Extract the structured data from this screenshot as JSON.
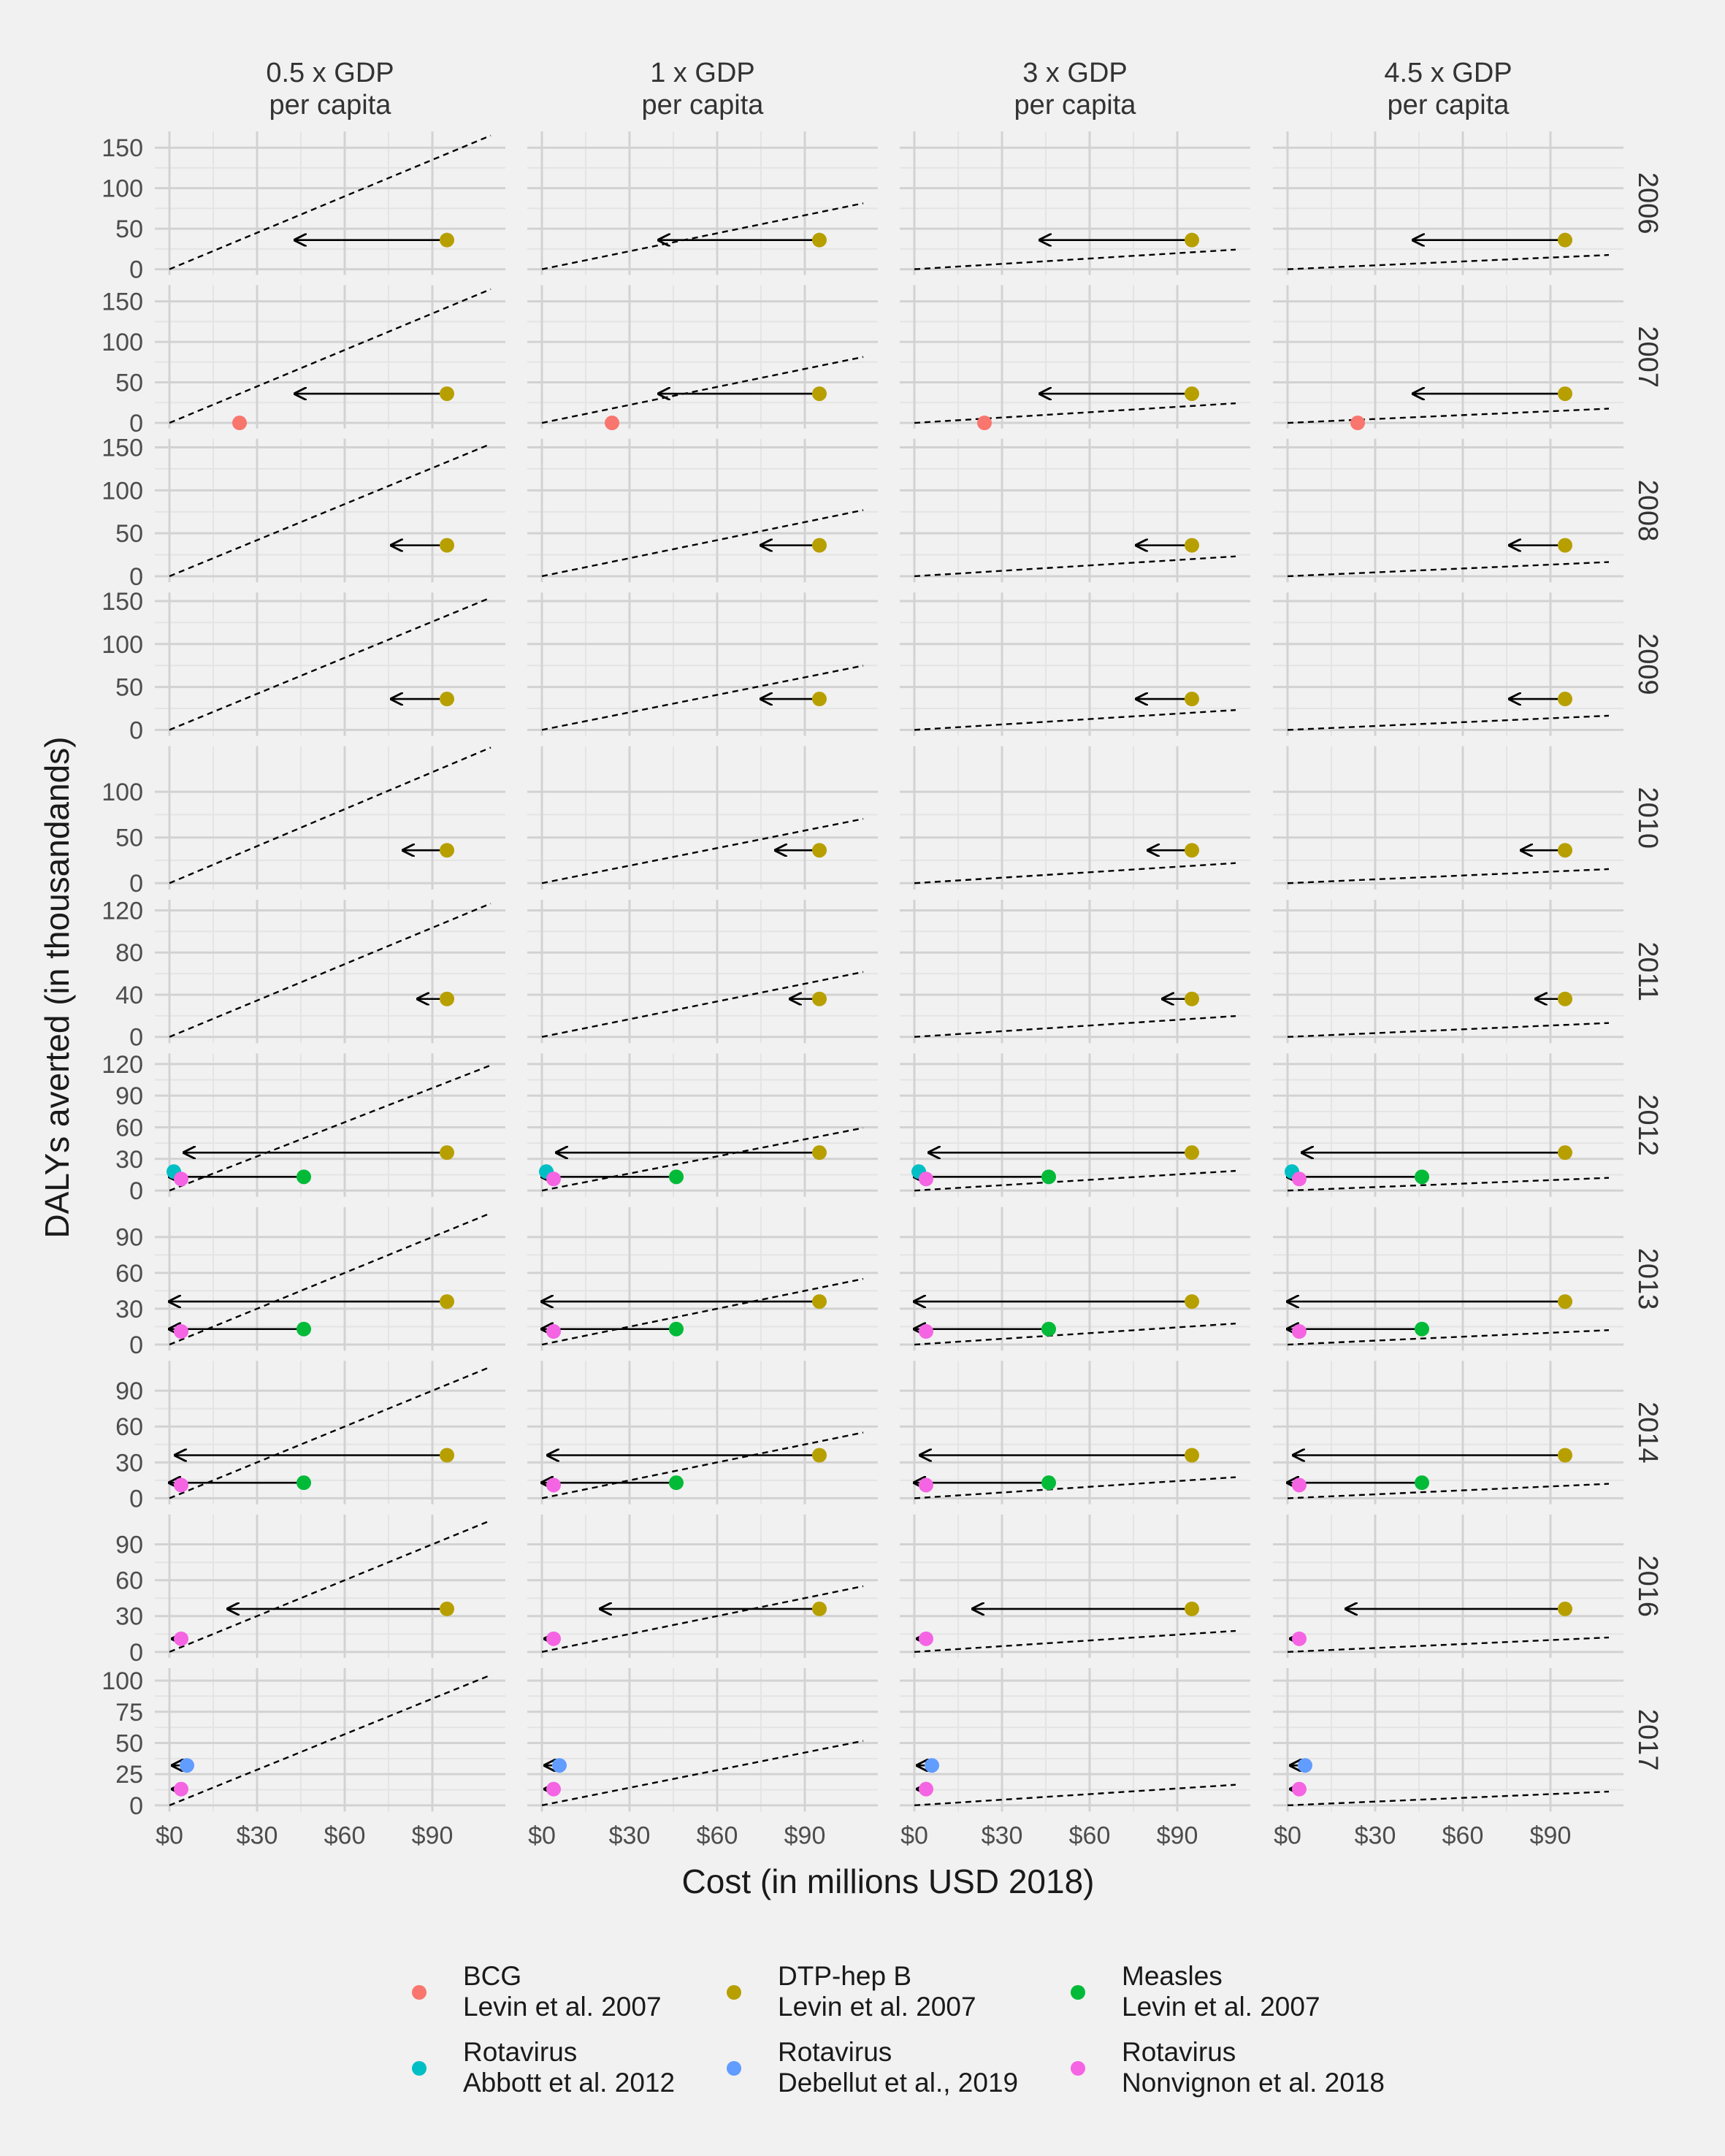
{
  "chart_data": {
    "type": "scatter",
    "xlabel": "Cost (in millions USD 2018)",
    "ylabel": "DALYs averted (in thousandands)",
    "x_ticks": [
      0,
      30,
      60,
      90
    ],
    "x_tick_labels": [
      "$0",
      "$30",
      "$60",
      "$90"
    ],
    "xlim": [
      -5,
      115
    ],
    "columns": [
      {
        "label1": "0.5 x GDP",
        "label2": "per capita",
        "slope": 1.45
      },
      {
        "label1": "1 x GDP",
        "label2": "per capita",
        "slope": 0.72
      },
      {
        "label1": "3 x GDP",
        "label2": "per capita",
        "slope": 0.22
      },
      {
        "label1": "4.5 x GDP",
        "label2": "per capita",
        "slope": 0.15
      }
    ],
    "rows": [
      {
        "year": "2006",
        "ylim": [
          -7,
          170
        ],
        "yticks": [
          0,
          50,
          100,
          150
        ],
        "slopes": [
          1.5,
          0.74,
          0.22,
          0.16
        ],
        "points": [
          {
            "vaccine": "DTP-hep B",
            "cost": 95,
            "dalys": 36,
            "arrow_to": [
              43,
              40,
              43,
              43
            ]
          }
        ]
      },
      {
        "year": "2007",
        "ylim": [
          -7,
          170
        ],
        "yticks": [
          0,
          50,
          100,
          150
        ],
        "slopes": [
          1.5,
          0.74,
          0.22,
          0.16
        ],
        "points": [
          {
            "vaccine": "DTP-hep B",
            "cost": 95,
            "dalys": 36,
            "arrow_to": [
              43,
              40,
              43,
              43
            ]
          },
          {
            "vaccine": "BCG",
            "cost": 24,
            "dalys": 0
          }
        ]
      },
      {
        "year": "2008",
        "ylim": [
          -7,
          160
        ],
        "yticks": [
          0,
          50,
          100,
          150
        ],
        "slopes": [
          1.4,
          0.7,
          0.21,
          0.15
        ],
        "points": [
          {
            "vaccine": "DTP-hep B",
            "cost": 95,
            "dalys": 36,
            "arrow_to": [
              76,
              75,
              76,
              76
            ]
          }
        ]
      },
      {
        "year": "2009",
        "ylim": [
          -7,
          160
        ],
        "yticks": [
          0,
          50,
          100,
          150
        ],
        "slopes": [
          1.4,
          0.68,
          0.21,
          0.15
        ],
        "points": [
          {
            "vaccine": "DTP-hep B",
            "cost": 95,
            "dalys": 36,
            "arrow_to": [
              76,
              75,
              76,
              76
            ]
          }
        ]
      },
      {
        "year": "2010",
        "ylim": [
          -7,
          150
        ],
        "yticks": [
          0,
          50,
          100
        ],
        "slopes": [
          1.35,
          0.64,
          0.2,
          0.14
        ],
        "points": [
          {
            "vaccine": "DTP-hep B",
            "cost": 95,
            "dalys": 36,
            "arrow_to": [
              80,
              80,
              80,
              80
            ]
          }
        ]
      },
      {
        "year": "2011",
        "ylim": [
          -6,
          130
        ],
        "yticks": [
          0,
          40,
          80,
          120
        ],
        "slopes": [
          1.15,
          0.56,
          0.18,
          0.12
        ],
        "points": [
          {
            "vaccine": "DTP-hep B",
            "cost": 95,
            "dalys": 36,
            "arrow_to": [
              85,
              85,
              85,
              85
            ]
          }
        ]
      },
      {
        "year": "2012",
        "ylim": [
          -6,
          130
        ],
        "yticks": [
          0,
          30,
          60,
          90,
          120
        ],
        "slopes": [
          1.08,
          0.54,
          0.17,
          0.11
        ],
        "points": [
          {
            "vaccine": "DTP-hep B",
            "cost": 95,
            "dalys": 36,
            "arrow_to": [
              5,
              5,
              5,
              5
            ]
          },
          {
            "vaccine": "Measles",
            "cost": 46,
            "dalys": 13,
            "arrow_to": [
              0,
              0,
              0,
              0
            ]
          },
          {
            "vaccine": "Rotavirus Abbott",
            "cost": 1.5,
            "dalys": 18
          },
          {
            "vaccine": "Rotavirus Nonvignon",
            "cost": 4,
            "dalys": 11
          }
        ]
      },
      {
        "year": "2013",
        "ylim": [
          -5,
          115
        ],
        "yticks": [
          0,
          30,
          60,
          90
        ],
        "slopes": [
          1.0,
          0.5,
          0.16,
          0.11
        ],
        "points": [
          {
            "vaccine": "DTP-hep B",
            "cost": 95,
            "dalys": 36,
            "arrow_to": [
              0,
              0,
              0,
              0
            ]
          },
          {
            "vaccine": "Measles",
            "cost": 46,
            "dalys": 13,
            "arrow_to": [
              0,
              0,
              0,
              0
            ]
          },
          {
            "vaccine": "Rotavirus Nonvignon",
            "cost": 4,
            "dalys": 11
          }
        ]
      },
      {
        "year": "2014",
        "ylim": [
          -5,
          115
        ],
        "yticks": [
          0,
          30,
          60,
          90
        ],
        "slopes": [
          1.0,
          0.5,
          0.16,
          0.11
        ],
        "points": [
          {
            "vaccine": "DTP-hep B",
            "cost": 95,
            "dalys": 36,
            "arrow_to": [
              2,
              2,
              2,
              2
            ]
          },
          {
            "vaccine": "Measles",
            "cost": 46,
            "dalys": 13,
            "arrow_to": [
              0,
              0,
              0,
              0
            ]
          },
          {
            "vaccine": "Rotavirus Nonvignon",
            "cost": 4,
            "dalys": 11
          }
        ]
      },
      {
        "year": "2016",
        "ylim": [
          -5,
          115
        ],
        "yticks": [
          0,
          30,
          60,
          90
        ],
        "slopes": [
          1.0,
          0.5,
          0.16,
          0.11
        ],
        "points": [
          {
            "vaccine": "DTP-hep B",
            "cost": 95,
            "dalys": 36,
            "arrow_to": [
              20,
              20,
              20,
              20
            ]
          },
          {
            "vaccine": "Rotavirus Nonvignon",
            "cost": 4,
            "dalys": 11,
            "arrow_to": [
              1,
              1,
              1,
              1
            ]
          }
        ]
      },
      {
        "year": "2017",
        "ylim": [
          -5,
          110
        ],
        "yticks": [
          0,
          25,
          50,
          75,
          100
        ],
        "slopes": [
          0.95,
          0.47,
          0.15,
          0.1
        ],
        "points": [
          {
            "vaccine": "Rotavirus Debellut",
            "cost": 6,
            "dalys": 32,
            "arrow_to": [
              1,
              1,
              1,
              1
            ]
          },
          {
            "vaccine": "Rotavirus Nonvignon",
            "cost": 4,
            "dalys": 13,
            "arrow_to": [
              1,
              1,
              1,
              1
            ]
          }
        ]
      }
    ],
    "legend": [
      {
        "key": "BCG",
        "line1": "BCG",
        "line2": "Levin et al. 2007",
        "color": "#f8766d"
      },
      {
        "key": "DTP-hep B",
        "line1": "DTP-hep B",
        "line2": "Levin et al. 2007",
        "color": "#b79f00"
      },
      {
        "key": "Measles",
        "line1": "Measles",
        "line2": "Levin et al. 2007",
        "color": "#00ba38"
      },
      {
        "key": "Rotavirus Abbott",
        "line1": "Rotavirus",
        "line2": "Abbott et al. 2012",
        "color": "#00bfc4"
      },
      {
        "key": "Rotavirus Debellut",
        "line1": "Rotavirus",
        "line2": "Debellut et al., 2019",
        "color": "#619cff"
      },
      {
        "key": "Rotavirus Nonvignon",
        "line1": "Rotavirus",
        "line2": "Nonvignon et al. 2018",
        "color": "#f564e3"
      }
    ],
    "legend_position": "bottom",
    "grid": true
  }
}
